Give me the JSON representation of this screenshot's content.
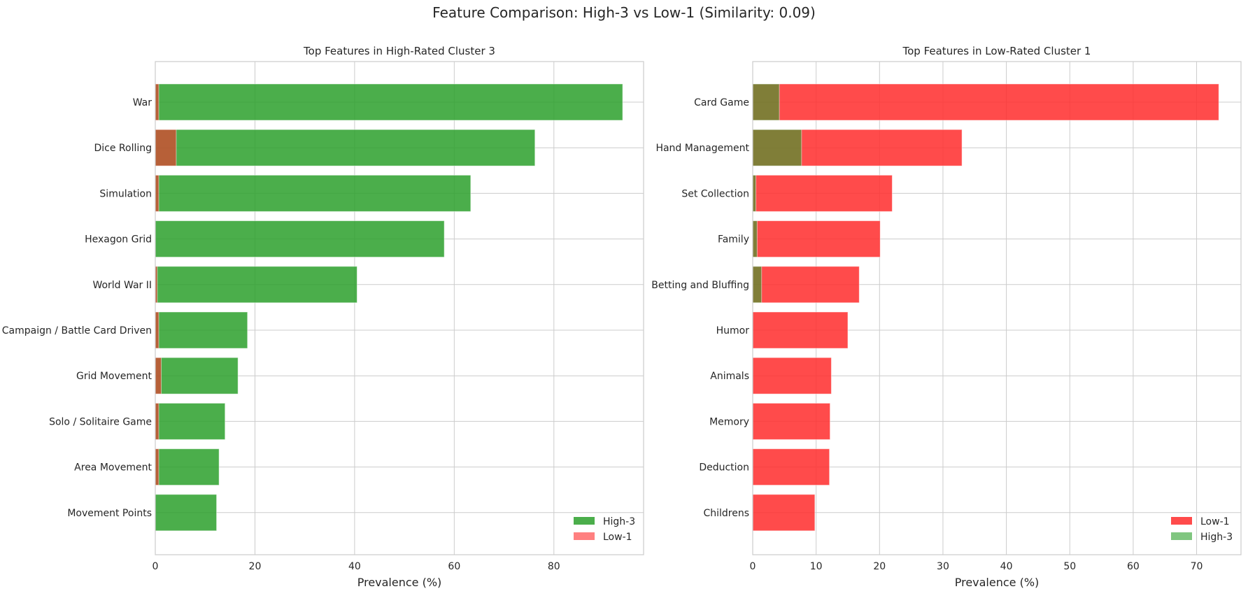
{
  "figure": {
    "suptitle": "Feature Comparison: High-3 vs Low-1 (Similarity: 0.09)"
  },
  "colors": {
    "high": "#2ca02c",
    "low": "#ff2b2b",
    "grid": "#cccccc",
    "text": "#262626"
  },
  "chart_data": [
    {
      "type": "bar",
      "orientation": "horizontal",
      "title": "Top Features in High-Rated Cluster 3",
      "xlabel": "Prevalence (%)",
      "ylabel": "",
      "xlim": [
        0,
        98
      ],
      "xticks": [
        0,
        20,
        40,
        60,
        80
      ],
      "grid": true,
      "legend_position": "lower right",
      "categories": [
        "War",
        "Dice Rolling",
        "Simulation",
        "Hexagon Grid",
        "World War II",
        "Campaign / Battle Card Driven",
        "Grid Movement",
        "Solo / Solitaire Game",
        "Area Movement",
        "Movement Points"
      ],
      "series": [
        {
          "name": "High-3",
          "color": "high",
          "values": [
            93.8,
            76.2,
            63.3,
            58.0,
            40.5,
            18.5,
            16.6,
            14.0,
            12.8,
            12.3
          ]
        },
        {
          "name": "Low-1",
          "color": "low",
          "values": [
            0.7,
            4.2,
            0.7,
            0.0,
            0.4,
            0.7,
            1.2,
            0.7,
            0.7,
            0.0
          ]
        }
      ]
    },
    {
      "type": "bar",
      "orientation": "horizontal",
      "title": "Top Features in Low-Rated Cluster 1",
      "xlabel": "Prevalence (%)",
      "ylabel": "",
      "xlim": [
        0,
        77
      ],
      "xticks": [
        0,
        10,
        20,
        30,
        40,
        50,
        60,
        70
      ],
      "grid": true,
      "legend_position": "lower right",
      "categories": [
        "Card Game",
        "Hand Management",
        "Set Collection",
        "Family",
        "Betting and Bluffing",
        "Humor",
        "Animals",
        "Memory",
        "Deduction",
        "Childrens"
      ],
      "series": [
        {
          "name": "Low-1",
          "color": "low",
          "values": [
            73.5,
            33.0,
            22.0,
            20.1,
            16.8,
            15.0,
            12.4,
            12.2,
            12.1,
            9.8
          ]
        },
        {
          "name": "High-3",
          "color": "high",
          "values": [
            4.2,
            7.7,
            0.5,
            0.7,
            1.4,
            0.0,
            0.0,
            0.0,
            0.0,
            0.0
          ]
        }
      ]
    }
  ]
}
